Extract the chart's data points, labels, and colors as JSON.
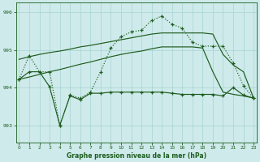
{
  "background_color": "#ceeaea",
  "grid_color": "#a8d4d4",
  "line_color": "#1e5c1e",
  "title": "Graphe pression niveau de la mer (hPa)",
  "xlim": [
    -0.3,
    23.3
  ],
  "ylim": [
    992.55,
    996.25
  ],
  "yticks": [
    993,
    994,
    995,
    996
  ],
  "xticks": [
    0,
    1,
    2,
    3,
    4,
    5,
    6,
    7,
    8,
    9,
    10,
    11,
    12,
    13,
    14,
    15,
    16,
    17,
    18,
    19,
    20,
    21,
    22,
    23
  ],
  "line_volatile_markers_x": [
    0,
    1,
    2,
    3,
    4,
    5,
    6,
    7,
    8,
    9,
    10,
    11,
    12,
    13,
    14,
    15,
    16,
    17,
    18,
    19,
    20,
    21,
    22,
    23
  ],
  "line_volatile_markers_y": [
    994.22,
    994.85,
    994.42,
    994.42,
    993.0,
    993.8,
    993.72,
    993.88,
    994.42,
    995.05,
    995.35,
    995.48,
    995.52,
    995.78,
    995.9,
    995.68,
    995.58,
    995.2,
    995.1,
    995.1,
    995.1,
    994.65,
    994.05,
    993.72
  ],
  "line_upper_band_x": [
    0,
    1,
    2,
    3,
    4,
    5,
    6,
    7,
    8,
    9,
    10,
    11,
    12,
    13,
    14,
    15,
    16,
    17,
    18,
    19,
    20,
    21,
    22,
    23
  ],
  "line_upper_band_y": [
    994.75,
    994.82,
    994.88,
    994.93,
    994.97,
    995.02,
    995.08,
    995.12,
    995.17,
    995.22,
    995.27,
    995.32,
    995.37,
    995.42,
    995.45,
    995.45,
    995.45,
    995.45,
    995.45,
    995.42,
    994.88,
    994.6,
    994.42,
    993.72
  ],
  "line_lower_band_x": [
    0,
    1,
    2,
    3,
    4,
    5,
    6,
    7,
    8,
    9,
    10,
    11,
    12,
    13,
    14,
    15,
    16,
    17,
    18,
    19,
    20,
    21,
    22,
    23
  ],
  "line_lower_band_y": [
    994.22,
    994.28,
    994.35,
    994.42,
    994.48,
    994.55,
    994.62,
    994.68,
    994.75,
    994.82,
    994.88,
    994.93,
    994.97,
    995.03,
    995.08,
    995.08,
    995.08,
    995.08,
    995.05,
    994.42,
    993.88,
    993.82,
    993.78,
    993.72
  ],
  "line_bottom_volatile_x": [
    0,
    1,
    2,
    3,
    4,
    5,
    6,
    7,
    8,
    9,
    10,
    11,
    12,
    13,
    14,
    15,
    16,
    17,
    18,
    19,
    20,
    21,
    22,
    23
  ],
  "line_bottom_volatile_y": [
    994.22,
    994.42,
    994.42,
    994.02,
    993.0,
    993.78,
    993.68,
    993.85,
    993.85,
    993.88,
    993.88,
    993.88,
    993.88,
    993.88,
    993.88,
    993.85,
    993.82,
    993.82,
    993.82,
    993.82,
    993.78,
    994.0,
    993.8,
    993.72
  ]
}
